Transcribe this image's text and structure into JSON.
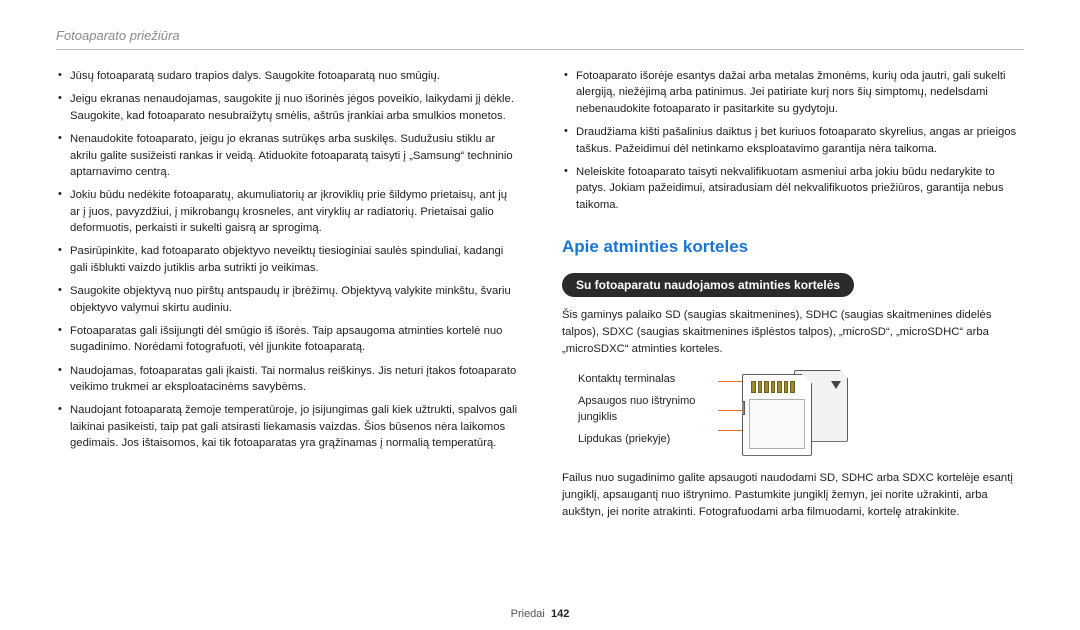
{
  "header": {
    "title": "Fotoaparato priežiūra"
  },
  "left_bullets": [
    "Jūsų fotoaparatą sudaro trapios dalys. Saugokite fotoaparatą nuo smūgių.",
    "Jeigu ekranas nenaudojamas, saugokite jį nuo išorinės jėgos poveikio, laikydami jį dėkle. Saugokite, kad fotoaparato nesubraižytų smėlis, aštrūs įrankiai arba smulkios monetos.",
    "Nenaudokite fotoaparato, jeigu jo ekranas sutrūkęs arba suskilęs. Sudužusiu stiklu ar akrilu galite susižeisti rankas ir veidą. Atiduokite fotoaparatą taisyti į „Samsung“ techninio aptarnavimo centrą.",
    "Jokiu būdu nedėkite fotoaparatų, akumuliatorių ar įkroviklių prie šildymo prietaisų, ant jų ar į juos, pavyzdžiui, į mikrobangų krosneles, ant viryklių ar radiatorių. Prietaisai galio deformuotis, perkaisti ir sukelti gaisrą ar sprogimą.",
    "Pasirūpinkite, kad fotoaparato objektyvo neveiktų tiesioginiai saulės spinduliai, kadangi gali išblukti vaizdo jutiklis arba sutrikti jo veikimas.",
    "Saugokite objektyvą nuo pirštų antspaudų ir įbrėžimų. Objektyvą valykite minkštu, švariu objektyvo valymui skirtu audiniu.",
    "Fotoaparatas gali išsijungti dėl smūgio iš išorės. Taip apsaugoma atminties kortelė nuo sugadinimo. Norėdami fotografuoti, vėl įjunkite fotoaparatą.",
    "Naudojamas, fotoaparatas gali įkaisti. Tai normalus reiškinys. Jis neturi įtakos fotoaparato veikimo trukmei ar eksploatacinėms savybėms.",
    "Naudojant fotoaparatą žemoje temperatūroje, jo įsijungimas gali kiek užtrukti, spalvos gali laikinai pasikeisti, taip pat gali atsirasti liekamasis vaizdas. Šios būsenos nėra laikomos gedimais. Jos ištaisomos, kai tik fotoaparatas yra grąžinamas į normalią temperatūrą."
  ],
  "right_bullets": [
    "Fotoaparato išorėje esantys dažai arba metalas žmonėms, kurių oda jautri, gali sukelti alergiją, niežėjimą arba patinimus. Jei patiriate kurį nors šių simptomų, nedelsdami nebenaudokite fotoaparato ir pasitarkite su gydytoju.",
    "Draudžiama kišti pašalinius daiktus į bet kuriuos fotoaparato skyrelius, angas ar prieigos taškus. Pažeidimui dėl netinkamo eksploatavimo garantija nėra taikoma.",
    "Neleiskite fotoaparato taisyti nekvalifikuotam asmeniui arba jokiu būdu nedarykite to patys. Jokiam pažeidimui, atsiradusiam dėl nekvalifikuotos priežiūros, garantija nebus taikoma."
  ],
  "section": {
    "title": "Apie atminties korteles",
    "badge": "Su fotoaparatu naudojamos atminties kortelės",
    "intro": "Šis gaminys palaiko SD (saugias skaitmenines), SDHC (saugias skaitmenines didelės talpos), SDXC (saugias skaitmenines išplėstos talpos), „microSD“, „microSDHC“ arba „microSDXC“ atminties korteles.",
    "diagram_labels": {
      "contacts": "Kontaktų terminalas",
      "switch": "Apsaugos nuo ištrynimo jungiklis",
      "sticker": "Lipdukas (priekyje)"
    },
    "body2": "Failus nuo sugadinimo galite apsaugoti naudodami SD, SDHC arba SDXC kortelėje esantį jungiklį, apsaugantį nuo ištrynimo. Pastumkite jungiklį žemyn, jei norite užrakinti, arba aukštyn, jei norite atrakinti. Fotografuodami arba filmuodami, kortelę atrakinkite."
  },
  "footer": {
    "section": "Priedai",
    "page": "142"
  },
  "colors": {
    "accent": "#1976d2",
    "lead": "#e9701c",
    "rule": "#bdbdbd"
  }
}
